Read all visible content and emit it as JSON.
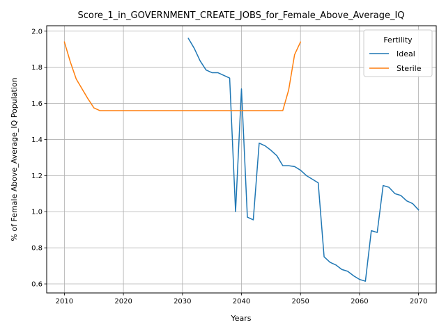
{
  "chart_data": {
    "type": "line",
    "title": "Score_1_in_GOVERNMENT_CREATE_JOBS_for_Female_Above_Average_IQ",
    "xlabel": "Years",
    "ylabel": "% of Female Above_Average_IQ Population",
    "xlim": [
      2007,
      2073
    ],
    "ylim": [
      0.55,
      2.03
    ],
    "xticks": [
      2010,
      2020,
      2030,
      2040,
      2050,
      2060,
      2070
    ],
    "yticks": [
      0.6,
      0.8,
      1.0,
      1.2,
      1.4,
      1.6,
      1.8,
      2.0
    ],
    "xtick_labels": [
      "2010",
      "2020",
      "2030",
      "2040",
      "2050",
      "2060",
      "2070"
    ],
    "ytick_labels": [
      "0.6",
      "0.8",
      "1.0",
      "1.2",
      "1.4",
      "1.6",
      "1.8",
      "2.0"
    ],
    "grid": true,
    "legend": {
      "title": "Fertility",
      "placement": "top-right"
    },
    "series": [
      {
        "name": "Ideal",
        "color": "#1f77b4",
        "x": [
          2031,
          2032,
          2033,
          2034,
          2035,
          2036,
          2037,
          2038,
          2039,
          2040,
          2041,
          2042,
          2043,
          2044,
          2045,
          2046,
          2047,
          2048,
          2049,
          2050,
          2051,
          2052,
          2053,
          2054,
          2055,
          2056,
          2057,
          2058,
          2059,
          2060,
          2061,
          2062,
          2063,
          2064,
          2065,
          2066,
          2067,
          2068,
          2069,
          2070
        ],
        "y": [
          1.96,
          1.905,
          1.835,
          1.785,
          1.77,
          1.77,
          1.755,
          1.74,
          1.0,
          1.68,
          0.97,
          0.955,
          1.38,
          1.365,
          1.34,
          1.31,
          1.255,
          1.255,
          1.25,
          1.23,
          1.2,
          1.18,
          1.16,
          0.75,
          0.72,
          0.705,
          0.68,
          0.67,
          0.645,
          0.625,
          0.615,
          0.895,
          0.885,
          1.145,
          1.135,
          1.1,
          1.09,
          1.06,
          1.045,
          1.01
        ]
      },
      {
        "name": "Sterile",
        "color": "#ff7f0e",
        "x": [
          2010,
          2011,
          2012,
          2013,
          2014,
          2015,
          2016,
          2017,
          2018,
          2019,
          2020,
          2021,
          2022,
          2023,
          2024,
          2025,
          2026,
          2027,
          2028,
          2029,
          2030,
          2031,
          2032,
          2033,
          2034,
          2035,
          2036,
          2037,
          2038,
          2039,
          2040,
          2041,
          2042,
          2043,
          2044,
          2045,
          2046,
          2047,
          2048,
          2049,
          2050
        ],
        "y": [
          1.94,
          1.83,
          1.735,
          1.68,
          1.625,
          1.575,
          1.56,
          1.56,
          1.56,
          1.56,
          1.56,
          1.56,
          1.56,
          1.56,
          1.56,
          1.56,
          1.56,
          1.56,
          1.56,
          1.56,
          1.56,
          1.56,
          1.56,
          1.56,
          1.56,
          1.56,
          1.56,
          1.56,
          1.56,
          1.56,
          1.56,
          1.56,
          1.56,
          1.56,
          1.56,
          1.56,
          1.56,
          1.56,
          1.675,
          1.87,
          1.94
        ]
      }
    ]
  }
}
